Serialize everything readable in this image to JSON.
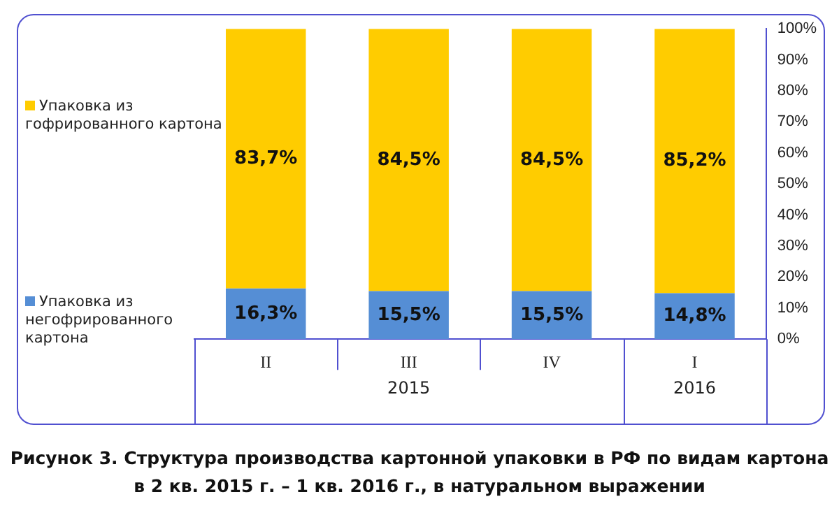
{
  "chart_data": {
    "type": "bar",
    "stacked": true,
    "title": "Рисунок 3. Структура производства картонной упаковки в РФ по видам картона в 2 кв. 2015 г. – 1 кв. 2016 г., в натуральном выражении",
    "categories": [
      "II",
      "III",
      "IV",
      "I"
    ],
    "series": [
      {
        "name": "Упаковка из негофрированного картона",
        "color": "#558ed5",
        "values": [
          16.3,
          15.5,
          15.5,
          14.8
        ],
        "value_labels": [
          "16,3%",
          "15,5%",
          "15,5%",
          "14,8%"
        ]
      },
      {
        "name": "Упаковка из гофрированного картона",
        "color": "#ffcc00",
        "values": [
          83.7,
          84.5,
          84.5,
          85.2
        ],
        "value_labels": [
          "83,7%",
          "84,5%",
          "84,5%",
          "85,2%"
        ]
      }
    ],
    "ylim": [
      0,
      100
    ],
    "yticks": [
      {
        "value": 0,
        "label": "0%"
      },
      {
        "value": 10,
        "label": "10%"
      },
      {
        "value": 20,
        "label": "20%"
      },
      {
        "value": 30,
        "label": "30%"
      },
      {
        "value": 40,
        "label": "40%"
      },
      {
        "value": 50,
        "label": "50%"
      },
      {
        "value": 60,
        "label": "60%"
      },
      {
        "value": 70,
        "label": "70%"
      },
      {
        "value": 80,
        "label": "80%"
      },
      {
        "value": 90,
        "label": "90%"
      },
      {
        "value": 100,
        "label": "100%"
      }
    ],
    "annotations": [
      "2015",
      "2016"
    ],
    "grid": false,
    "legend": "left"
  }
}
